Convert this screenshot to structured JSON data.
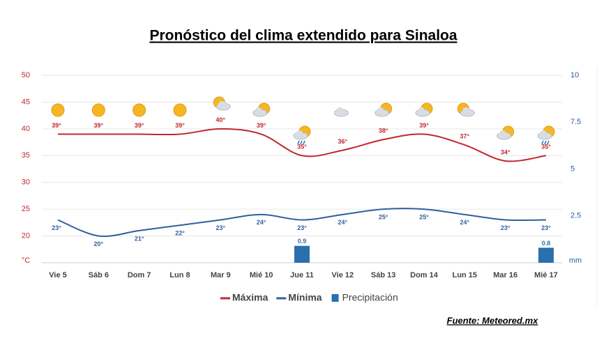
{
  "chart_data": {
    "type": "line",
    "title": "Pronóstico del clima extendido para Sinaloa",
    "source": "Fuente: Meteored.mx",
    "ylabel": "°C",
    "y2label": "mm",
    "categories": [
      "Vie 5",
      "Sáb 6",
      "Dom 7",
      "Lun 8",
      "Mar 9",
      "Mié 10",
      "Jue 11",
      "Vie 12",
      "Sáb 13",
      "Dom 14",
      "Lun 15",
      "Mar 16",
      "Mié 17"
    ],
    "ylim": [
      15,
      50
    ],
    "yticks": [
      20,
      25,
      30,
      35,
      40,
      45,
      50
    ],
    "y2lim": [
      0,
      10
    ],
    "y2ticks": [
      2.5,
      5,
      7.5,
      10
    ],
    "grid": true,
    "series": [
      {
        "name": "Máxima",
        "type": "line",
        "color": "#c0282d",
        "values": [
          39,
          39,
          39,
          39,
          40,
          39,
          35,
          36,
          38,
          39,
          37,
          34,
          35
        ],
        "value_labels": [
          "39°",
          "39°",
          "39°",
          "39°",
          "40°",
          "39°",
          "35°",
          "36°",
          "38°",
          "39°",
          "37°",
          "34°",
          "35°"
        ]
      },
      {
        "name": "Mínima",
        "type": "line",
        "color": "#2f5f9e",
        "values": [
          23,
          20,
          21,
          22,
          23,
          24,
          23,
          24,
          25,
          25,
          24,
          23,
          23
        ],
        "value_labels": [
          "23°",
          "20°",
          "21°",
          "22°",
          "23°",
          "24°",
          "23°",
          "24°",
          "25°",
          "25°",
          "24°",
          "23°",
          "23°"
        ]
      },
      {
        "name": "Precipitación",
        "type": "bar",
        "axis": "y2",
        "color": "#2a70ad",
        "values": [
          null,
          null,
          null,
          null,
          null,
          null,
          0.9,
          null,
          null,
          null,
          null,
          null,
          0.8
        ]
      }
    ]
  }
}
